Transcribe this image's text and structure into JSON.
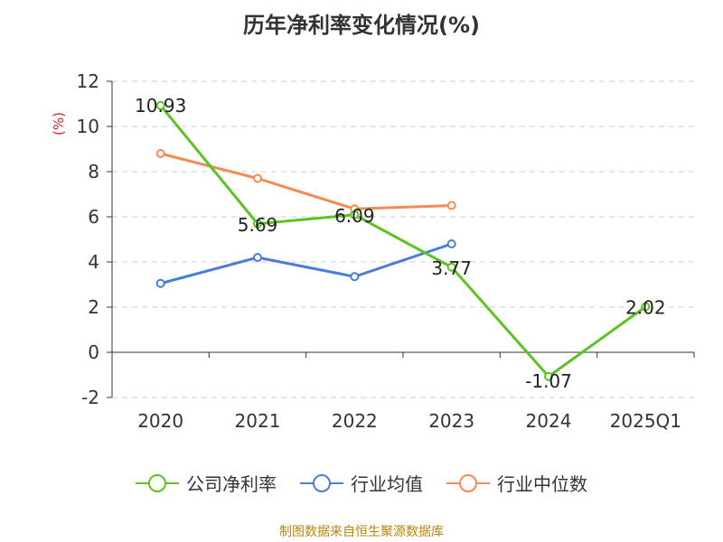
{
  "chart_data": {
    "type": "line",
    "title": "历年净利率变化情况(%)",
    "ylabel": "(%)",
    "categories": [
      "2020",
      "2021",
      "2022",
      "2023",
      "2024",
      "2025Q1"
    ],
    "ylim": [
      -2,
      12
    ],
    "yticks": [
      -2,
      0,
      2,
      4,
      6,
      8,
      10,
      12
    ],
    "grid": true,
    "legend_position": "bottom",
    "series": [
      {
        "name": "公司净利率",
        "color": "#5cc323",
        "values": [
          10.93,
          5.69,
          6.09,
          3.77,
          -1.07,
          2.02
        ],
        "labels": [
          "10.93",
          "5.69",
          "6.09",
          "3.77",
          "-1.07",
          "2.02"
        ]
      },
      {
        "name": "行业均值",
        "color": "#4a7ddb",
        "values": [
          3.05,
          4.2,
          3.35,
          4.8,
          null,
          null
        ]
      },
      {
        "name": "行业中位数",
        "color": "#f58b52",
        "values": [
          8.8,
          7.7,
          6.35,
          6.5,
          null,
          null
        ]
      }
    ]
  },
  "source": "制图数据来自恒生聚源数据库"
}
